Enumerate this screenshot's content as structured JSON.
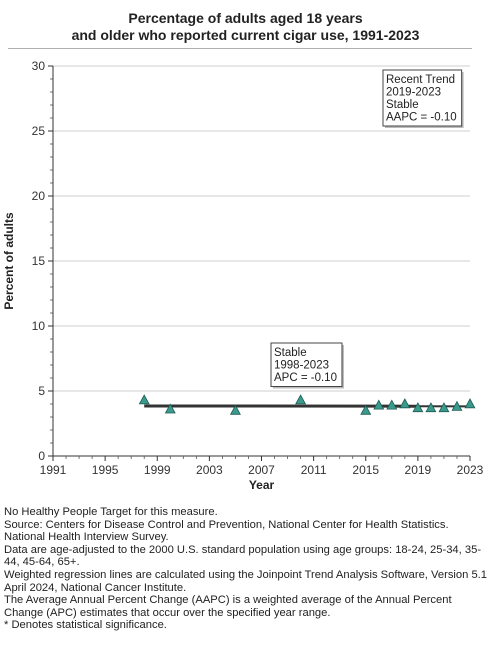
{
  "chart_data": {
    "type": "scatter",
    "title_lines": [
      "Percentage of adults aged 18 years",
      "and older who reported current cigar use, 1991-2023"
    ],
    "xlabel": "Year",
    "ylabel": "Percent of adults",
    "xlim": [
      1991,
      2023
    ],
    "ylim": [
      0,
      30
    ],
    "x_ticks": [
      1991,
      1995,
      1999,
      2003,
      2007,
      2011,
      2015,
      2019,
      2023
    ],
    "y_ticks": [
      0,
      5,
      10,
      15,
      20,
      25,
      30
    ],
    "grid": "horizontal",
    "colors": {
      "marker": "#3a9a8c",
      "marker_edge": "#1f5b53",
      "trend": "#333333",
      "grid": "#cfcfcf"
    },
    "series": [
      {
        "x": [
          1998,
          2000,
          2005,
          2010,
          2015,
          2016,
          2017,
          2018,
          2019,
          2020,
          2021,
          2022,
          2023
        ],
        "y": [
          4.3,
          3.6,
          3.5,
          4.3,
          3.5,
          3.9,
          3.9,
          4.0,
          3.7,
          3.7,
          3.7,
          3.8,
          4.0
        ]
      }
    ],
    "trend_segments": [
      {
        "x": [
          1998,
          2019
        ],
        "y": [
          3.85,
          3.83
        ],
        "width": 3
      },
      {
        "x": [
          2019,
          2023
        ],
        "y": [
          3.83,
          3.82
        ],
        "width": 2
      }
    ],
    "annotations": [
      {
        "lines": [
          "Recent Trend",
          "2019-2023",
          "Stable",
          "AAPC = -0.10"
        ],
        "position": "top-right"
      },
      {
        "lines": [
          "Stable",
          "1998-2023",
          "APC = -0.10"
        ],
        "position": "above-trend"
      }
    ]
  },
  "footnotes": [
    "No Healthy People Target for this measure.",
    "Source: Centers for Disease Control and Prevention, National Center for Health Statistics. National Health Interview Survey.",
    "Data are age-adjusted to the 2000 U.S. standard population using age groups: 18-24, 25-34, 35-44, 45-64, 65+.",
    "Weighted regression lines are calculated using the Joinpoint Trend Analysis Software, Version 5.1 April 2024, National Cancer Institute.",
    "The Average Annual Percent Change (AAPC) is a weighted average of the Annual Percent Change (APC) estimates that occur over the specified year range.",
    "* Denotes statistical significance."
  ]
}
